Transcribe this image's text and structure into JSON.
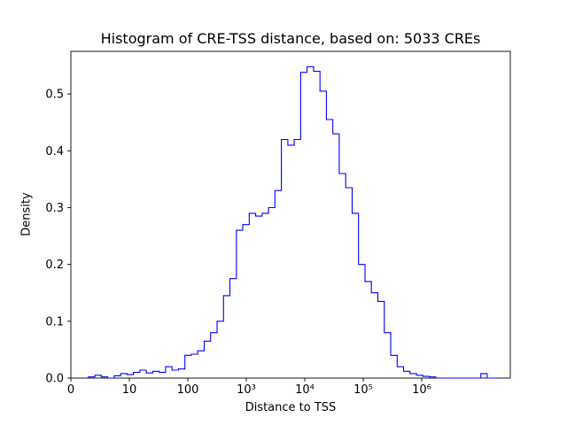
{
  "figure": {
    "title": "Histogram of CRE-TSS distance, based on: 5033 CREs",
    "xlabel": "Distance to TSS",
    "ylabel": "Density"
  },
  "chart_data": {
    "type": "bar",
    "style": "step_histogram",
    "title": "Histogram of CRE-TSS distance, based on: 5033 CREs",
    "xlabel": "Distance to TSS",
    "ylabel": "Density",
    "n_samples": 5033,
    "x_scale": "symlog (positions in log10 units of distance)",
    "grid": false,
    "legend": null,
    "color": "#0000ff",
    "ylim": [
      0,
      0.575
    ],
    "u_max": 7.515,
    "xticks": [
      {
        "u": 0,
        "label": "0"
      },
      {
        "u": 1,
        "label": "10"
      },
      {
        "u": 2,
        "label": "100"
      },
      {
        "u": 3,
        "label": "10³"
      },
      {
        "u": 4,
        "label": "10⁴"
      },
      {
        "u": 5,
        "label": "10⁵"
      },
      {
        "u": 6,
        "label": "10⁶"
      }
    ],
    "yticks": [
      {
        "value": 0.0,
        "label": "0.0"
      },
      {
        "value": 0.1,
        "label": "0.1"
      },
      {
        "value": 0.2,
        "label": "0.2"
      },
      {
        "value": 0.3,
        "label": "0.3"
      },
      {
        "value": 0.4,
        "label": "0.4"
      },
      {
        "value": 0.5,
        "label": "0.5"
      }
    ],
    "bins": {
      "note": "uniform bins in log10(distance); density per bin",
      "start_log10": 0.3,
      "width_log10": 0.11,
      "densities": [
        0.002,
        0.005,
        0.002,
        0.0,
        0.004,
        0.008,
        0.006,
        0.01,
        0.014,
        0.009,
        0.012,
        0.01,
        0.02,
        0.014,
        0.016,
        0.04,
        0.042,
        0.048,
        0.065,
        0.08,
        0.1,
        0.145,
        0.175,
        0.26,
        0.27,
        0.29,
        0.285,
        0.29,
        0.3,
        0.33,
        0.42,
        0.41,
        0.42,
        0.538,
        0.548,
        0.54,
        0.505,
        0.455,
        0.43,
        0.36,
        0.335,
        0.29,
        0.2,
        0.17,
        0.15,
        0.135,
        0.08,
        0.04,
        0.02,
        0.012,
        0.008,
        0.005,
        0.003,
        0.002,
        0.0,
        0.0,
        0.0,
        0.0,
        0.0,
        0.0,
        0.0,
        0.008,
        0.0,
        0.0
      ]
    }
  }
}
